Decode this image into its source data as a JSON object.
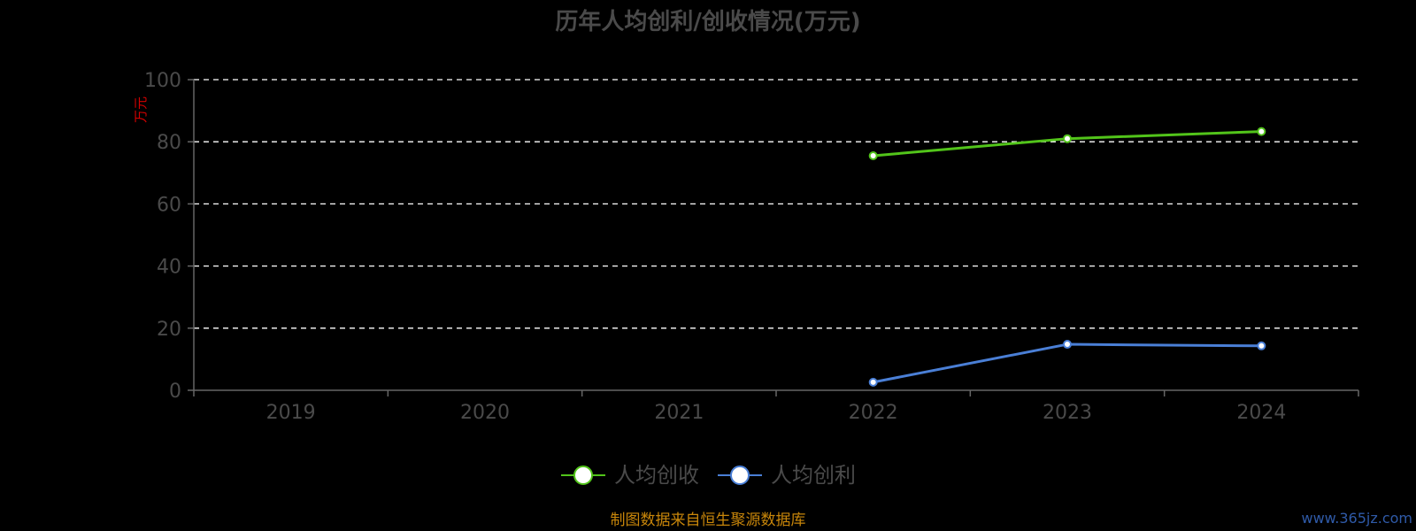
{
  "chart_data": {
    "type": "line",
    "title": "历年人均创利/创收情况(万元)",
    "ylabel": "万元",
    "ylim": [
      0,
      100
    ],
    "yticks": [
      0,
      20,
      40,
      60,
      80,
      100
    ],
    "grid": true,
    "grid_style": "dashed",
    "legend_position": "bottom-center",
    "categories": [
      "2019",
      "2020",
      "2021",
      "2022",
      "2023",
      "2024"
    ],
    "series": [
      {
        "name": "人均创收",
        "color": "#52c41a",
        "values": [
          null,
          null,
          null,
          75.5,
          81.0,
          83.3
        ]
      },
      {
        "name": "人均创利",
        "color": "#4a7fd6",
        "values": [
          null,
          null,
          null,
          2.6,
          14.8,
          14.3
        ]
      }
    ]
  },
  "source_note": "制图数据来自恒生聚源数据库",
  "watermark": "www.365jz.com",
  "colors": {
    "background": "#000000",
    "axis": "#666666",
    "grid": "#ffffff",
    "text": "#4a4a4a",
    "unit_label": "#d40000",
    "source_note": "#c8860a",
    "watermark": "#2f5aa8"
  }
}
